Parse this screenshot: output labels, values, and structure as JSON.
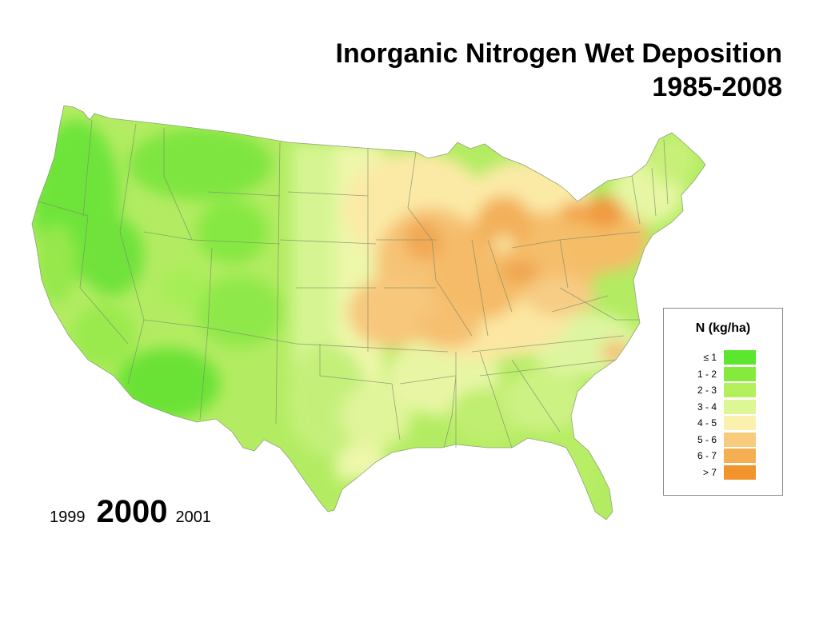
{
  "title": {
    "line1": "Inorganic Nitrogen Wet Deposition",
    "line2": "1985-2008"
  },
  "years": {
    "prev": "1999",
    "current": "2000",
    "next": "2001"
  },
  "legend": {
    "title": "N  (kg/ha)",
    "items": [
      {
        "label": "≤ 1",
        "color": "#5ce62e"
      },
      {
        "label": "1 - 2",
        "color": "#86ea3c"
      },
      {
        "label": "2 - 3",
        "color": "#b3f05c"
      },
      {
        "label": "3 - 4",
        "color": "#ddf796"
      },
      {
        "label": "4 - 5",
        "color": "#fbf0ad"
      },
      {
        "label": "5 - 6",
        "color": "#f8cc7c"
      },
      {
        "label": "6 - 7",
        "color": "#f5ae52"
      },
      {
        "label": "> 7",
        "color": "#f2942e"
      }
    ]
  }
}
